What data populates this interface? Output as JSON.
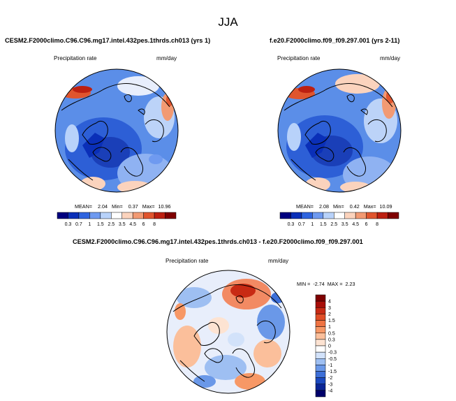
{
  "title": "JJA",
  "panels": [
    {
      "case": "CESM2.F2000climo.C96.C96.mg17.intel.432pes.1thrds.ch013 (yrs 1)",
      "variable": "Precipitation rate",
      "units": "mm/day",
      "stats": {
        "mean_label": "MEAN=",
        "mean": "2.04",
        "min_label": "Min=",
        "min": "0.37",
        "max_label": "Max=",
        "max": "10.96"
      }
    },
    {
      "case": "f.e20.F2000climo.f09_f09.297.001 (yrs 2-11)",
      "variable": "Precipitation rate",
      "units": "mm/day",
      "stats": {
        "mean_label": "MEAN=",
        "mean": "2.08",
        "min_label": "Min=",
        "min": "0.42",
        "max_label": "Max=",
        "max": "10.09"
      }
    }
  ],
  "diff": {
    "case": "CESM2.F2000climo.C96.C96.mg17.intel.432pes.1thrds.ch013 - f.e20.F2000climo.f09_f09.297.001",
    "variable": "Precipitation rate",
    "units": "mm/day",
    "stats": {
      "min_label": "MIN =",
      "min": "-2.74",
      "max_label": "MAX =",
      "max": "2.23"
    }
  },
  "colorbar": {
    "levels": [
      "0.3",
      "0.7",
      "1",
      "1.5",
      "2.5",
      "3.5",
      "4.5",
      "6",
      "8"
    ],
    "colors": [
      "#00007f",
      "#0a2fb8",
      "#2e64df",
      "#6f9af0",
      "#b8d2fa",
      "#ffffff",
      "#fbd3bd",
      "#f29a73",
      "#e0552e",
      "#bd2011",
      "#7f0000"
    ]
  },
  "diff_colorbar": {
    "levels": [
      "4",
      "3",
      "2",
      "1.5",
      "1",
      "0.5",
      "0.3",
      "0",
      "-0.3",
      "-0.5",
      "-1",
      "-1.5",
      "-2",
      "-3",
      "-4"
    ],
    "colors": [
      "#7f0000",
      "#a80e08",
      "#c82a14",
      "#e04d26",
      "#ef7342",
      "#f79866",
      "#fbbf9b",
      "#fde3d2",
      "#ffffff",
      "#d2e2fa",
      "#9ebff2",
      "#6a98e8",
      "#3d6fd8",
      "#1b49c0",
      "#0a2596",
      "#00006b"
    ]
  }
}
